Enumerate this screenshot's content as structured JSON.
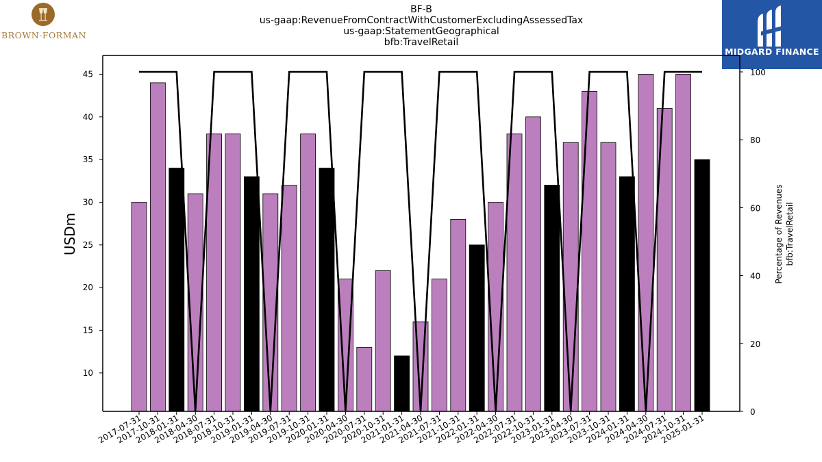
{
  "brand_left": {
    "name": "BROWN-FORMAN"
  },
  "brand_right": {
    "name": "MIDGARD FINANCE"
  },
  "chart_data": {
    "type": "bar",
    "title_lines": [
      "BF-B",
      "us-gaap:RevenueFromContractWithCustomerExcludingAssessedTax",
      "us-gaap:StatementGeographical",
      "bfb:TravelRetail"
    ],
    "ylabel": "USDm",
    "ylabel_right": [
      "Percentage of Revenues",
      "bfb:TravelRetail"
    ],
    "ylim": [
      5.5,
      47.2
    ],
    "ylim_right": [
      0,
      100
    ],
    "yticks": [
      10,
      15,
      20,
      25,
      30,
      35,
      40,
      45
    ],
    "yticks_right": [
      0,
      20,
      40,
      60,
      80,
      100
    ],
    "grid": false,
    "categories": [
      "2017-07-31",
      "2017-10-31",
      "2018-01-31",
      "2018-04-30",
      "2018-07-31",
      "2018-10-31",
      "2019-01-31",
      "2019-04-30",
      "2019-07-31",
      "2019-10-31",
      "2020-01-31",
      "2020-04-30",
      "2020-07-31",
      "2020-10-31",
      "2021-01-31",
      "2021-04-30",
      "2021-07-31",
      "2021-10-31",
      "2022-01-31",
      "2022-04-30",
      "2022-07-31",
      "2022-10-31",
      "2023-01-31",
      "2023-04-30",
      "2023-07-31",
      "2023-10-31",
      "2024-01-31",
      "2024-04-30",
      "2024-07-31",
      "2024-10-31",
      "2025-01-31"
    ],
    "series": [
      {
        "values": [
          30,
          44,
          34,
          31,
          38,
          38,
          33,
          31,
          32,
          38,
          34,
          21,
          13,
          22,
          12,
          16,
          21,
          28,
          25,
          30,
          38,
          40,
          32,
          37,
          43,
          37,
          33,
          45,
          41,
          45,
          35
        ],
        "colors": [
          "#bb7fbd",
          "#bb7fbd",
          "#000000",
          "#bb7fbd",
          "#bb7fbd",
          "#bb7fbd",
          "#000000",
          "#bb7fbd",
          "#bb7fbd",
          "#bb7fbd",
          "#000000",
          "#bb7fbd",
          "#bb7fbd",
          "#bb7fbd",
          "#000000",
          "#bb7fbd",
          "#bb7fbd",
          "#bb7fbd",
          "#000000",
          "#bb7fbd",
          "#bb7fbd",
          "#bb7fbd",
          "#000000",
          "#bb7fbd",
          "#bb7fbd",
          "#bb7fbd",
          "#000000",
          "#bb7fbd",
          "#bb7fbd",
          "#bb7fbd",
          "#000000"
        ]
      },
      {
        "type": "line",
        "axis": "right",
        "values": [
          100,
          100,
          100,
          0,
          100,
          100,
          100,
          0,
          100,
          100,
          100,
          0,
          100,
          100,
          100,
          0,
          100,
          100,
          100,
          0,
          100,
          100,
          100,
          0,
          100,
          100,
          100,
          0,
          100,
          100,
          100
        ]
      }
    ]
  }
}
